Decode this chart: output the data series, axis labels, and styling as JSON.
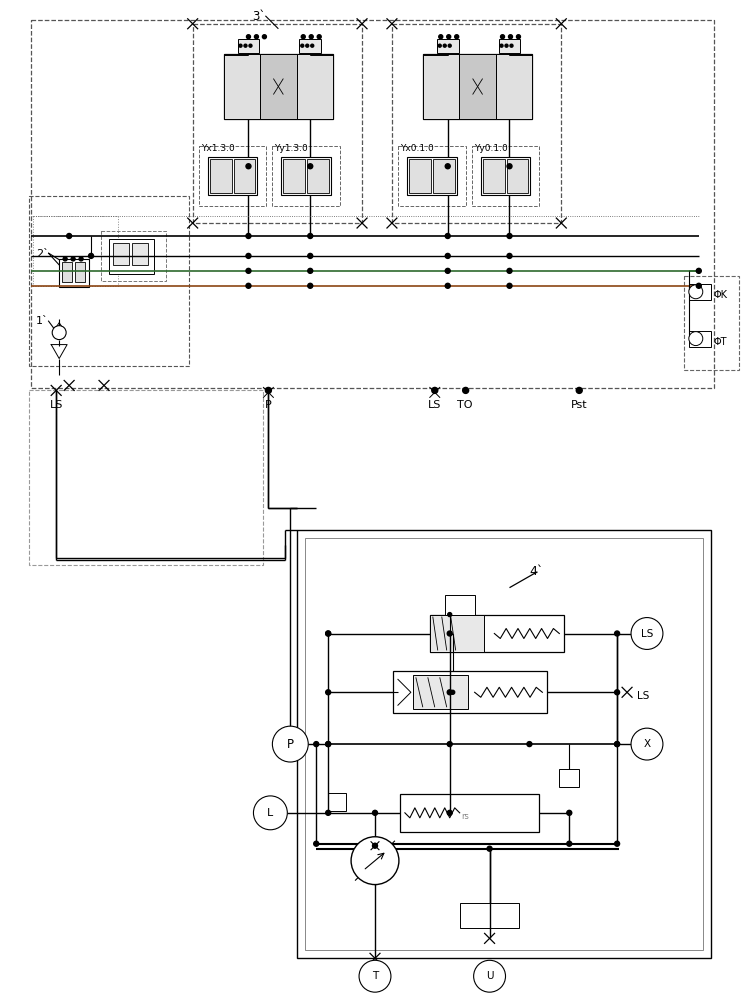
{
  "bg_color": "#ffffff",
  "lc": "#000000",
  "gc": "#2d6a2d",
  "brc": "#8b4513",
  "gray": "#888888",
  "dgray": "#555555",
  "lgray": "#bbbbbb",
  "fig_width": 7.49,
  "fig_height": 10.0,
  "labels": {
    "label_3": "3`",
    "label_2": "2`",
    "label_1": "1`",
    "label_4": "4`",
    "yx130": "Yx1.3.0",
    "yy130": "Yy1.3.0",
    "yx010": "Yx0.1.0",
    "yy010": "Yy0.1.0",
    "ls_bot": "LS",
    "p_bot": "P",
    "ls2_bot": "LS",
    "to_bot": "TO",
    "pst_bot": "Pst",
    "phi_k": "ΦK",
    "phi_t": "ΦT"
  }
}
